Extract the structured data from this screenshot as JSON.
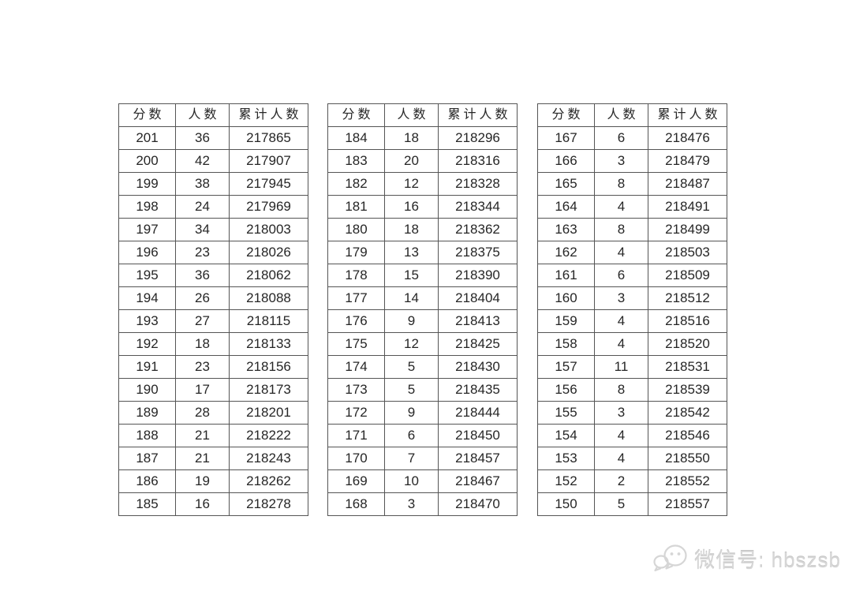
{
  "colors": {
    "background": "#ffffff",
    "table_border": "#555555",
    "table_text": "#262626",
    "watermark": "#d6d6d6"
  },
  "headers": [
    "分数",
    "人数",
    "累计人数"
  ],
  "column_keys": [
    "score",
    "count",
    "cumulative"
  ],
  "tables": [
    {
      "name": "score-table-1",
      "rows": [
        [
          "201",
          "36",
          "217865"
        ],
        [
          "200",
          "42",
          "217907"
        ],
        [
          "199",
          "38",
          "217945"
        ],
        [
          "198",
          "24",
          "217969"
        ],
        [
          "197",
          "34",
          "218003"
        ],
        [
          "196",
          "23",
          "218026"
        ],
        [
          "195",
          "36",
          "218062"
        ],
        [
          "194",
          "26",
          "218088"
        ],
        [
          "193",
          "27",
          "218115"
        ],
        [
          "192",
          "18",
          "218133"
        ],
        [
          "191",
          "23",
          "218156"
        ],
        [
          "190",
          "17",
          "218173"
        ],
        [
          "189",
          "28",
          "218201"
        ],
        [
          "188",
          "21",
          "218222"
        ],
        [
          "187",
          "21",
          "218243"
        ],
        [
          "186",
          "19",
          "218262"
        ],
        [
          "185",
          "16",
          "218278"
        ]
      ]
    },
    {
      "name": "score-table-2",
      "rows": [
        [
          "184",
          "18",
          "218296"
        ],
        [
          "183",
          "20",
          "218316"
        ],
        [
          "182",
          "12",
          "218328"
        ],
        [
          "181",
          "16",
          "218344"
        ],
        [
          "180",
          "18",
          "218362"
        ],
        [
          "179",
          "13",
          "218375"
        ],
        [
          "178",
          "15",
          "218390"
        ],
        [
          "177",
          "14",
          "218404"
        ],
        [
          "176",
          "9",
          "218413"
        ],
        [
          "175",
          "12",
          "218425"
        ],
        [
          "174",
          "5",
          "218430"
        ],
        [
          "173",
          "5",
          "218435"
        ],
        [
          "172",
          "9",
          "218444"
        ],
        [
          "171",
          "6",
          "218450"
        ],
        [
          "170",
          "7",
          "218457"
        ],
        [
          "169",
          "10",
          "218467"
        ],
        [
          "168",
          "3",
          "218470"
        ]
      ]
    },
    {
      "name": "score-table-3",
      "rows": [
        [
          "167",
          "6",
          "218476"
        ],
        [
          "166",
          "3",
          "218479"
        ],
        [
          "165",
          "8",
          "218487"
        ],
        [
          "164",
          "4",
          "218491"
        ],
        [
          "163",
          "8",
          "218499"
        ],
        [
          "162",
          "4",
          "218503"
        ],
        [
          "161",
          "6",
          "218509"
        ],
        [
          "160",
          "3",
          "218512"
        ],
        [
          "159",
          "4",
          "218516"
        ],
        [
          "158",
          "4",
          "218520"
        ],
        [
          "157",
          "11",
          "218531"
        ],
        [
          "156",
          "8",
          "218539"
        ],
        [
          "155",
          "3",
          "218542"
        ],
        [
          "154",
          "4",
          "218546"
        ],
        [
          "153",
          "4",
          "218550"
        ],
        [
          "152",
          "2",
          "218552"
        ],
        [
          "150",
          "5",
          "218557"
        ]
      ]
    }
  ],
  "watermark": {
    "label": "微信号: hbszsb",
    "icon": "wechat-icon"
  }
}
